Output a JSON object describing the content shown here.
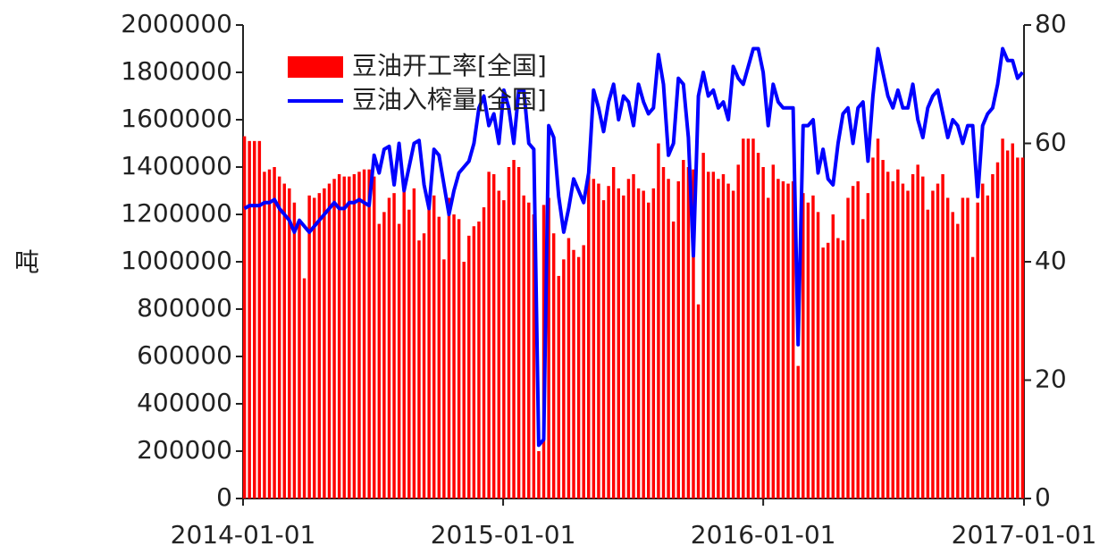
{
  "chart_data": {
    "type": "bar",
    "ylabel": "吨",
    "xlim": [
      "2014-01-01",
      "2017-01-01"
    ],
    "xticks": [
      "2014-01-01",
      "2015-01-01",
      "2016-01-01",
      "2017-01-01"
    ],
    "ylim": [
      0,
      2000000
    ],
    "yticks": [
      0,
      200000,
      400000,
      600000,
      800000,
      1000000,
      1200000,
      1400000,
      1600000,
      1800000,
      2000000
    ],
    "y2lim": [
      0,
      80
    ],
    "y2ticks": [
      0,
      20,
      40,
      60,
      80
    ],
    "grid": false,
    "legend": "top-left",
    "x": [
      "2014-01-03",
      "2014-01-10",
      "2014-01-17",
      "2014-01-24",
      "2014-01-31",
      "2014-02-07",
      "2014-02-14",
      "2014-02-21",
      "2014-02-28",
      "2014-03-07",
      "2014-03-14",
      "2014-03-21",
      "2014-03-28",
      "2014-04-04",
      "2014-04-11",
      "2014-04-18",
      "2014-04-25",
      "2014-05-02",
      "2014-05-09",
      "2014-05-16",
      "2014-05-23",
      "2014-05-30",
      "2014-06-06",
      "2014-06-13",
      "2014-06-20",
      "2014-06-27",
      "2014-07-04",
      "2014-07-11",
      "2014-07-18",
      "2014-07-25",
      "2014-08-01",
      "2014-08-08",
      "2014-08-15",
      "2014-08-22",
      "2014-08-29",
      "2014-09-05",
      "2014-09-12",
      "2014-09-19",
      "2014-09-26",
      "2014-10-03",
      "2014-10-10",
      "2014-10-17",
      "2014-10-24",
      "2014-10-31",
      "2014-11-07",
      "2014-11-14",
      "2014-11-21",
      "2014-11-28",
      "2014-12-05",
      "2014-12-12",
      "2014-12-19",
      "2014-12-26",
      "2015-01-02",
      "2015-01-09",
      "2015-01-16",
      "2015-01-23",
      "2015-01-30",
      "2015-02-06",
      "2015-02-13",
      "2015-02-20",
      "2015-02-27",
      "2015-03-06",
      "2015-03-13",
      "2015-03-20",
      "2015-03-27",
      "2015-04-03",
      "2015-04-10",
      "2015-04-17",
      "2015-04-24",
      "2015-05-01",
      "2015-05-08",
      "2015-05-15",
      "2015-05-22",
      "2015-05-29",
      "2015-06-05",
      "2015-06-12",
      "2015-06-19",
      "2015-06-26",
      "2015-07-03",
      "2015-07-10",
      "2015-07-17",
      "2015-07-24",
      "2015-07-31",
      "2015-08-07",
      "2015-08-14",
      "2015-08-21",
      "2015-08-28",
      "2015-09-04",
      "2015-09-11",
      "2015-09-18",
      "2015-09-25",
      "2015-10-02",
      "2015-10-09",
      "2015-10-16",
      "2015-10-23",
      "2015-10-30",
      "2015-11-06",
      "2015-11-13",
      "2015-11-20",
      "2015-11-27",
      "2015-12-04",
      "2015-12-11",
      "2015-12-18",
      "2015-12-25",
      "2016-01-01",
      "2016-01-08",
      "2016-01-15",
      "2016-01-22",
      "2016-01-29",
      "2016-02-05",
      "2016-02-12",
      "2016-02-19",
      "2016-02-26",
      "2016-03-04",
      "2016-03-11",
      "2016-03-18",
      "2016-03-25",
      "2016-04-01",
      "2016-04-08",
      "2016-04-15",
      "2016-04-22",
      "2016-04-29",
      "2016-05-06",
      "2016-05-13",
      "2016-05-20",
      "2016-05-27",
      "2016-06-03",
      "2016-06-10",
      "2016-06-17",
      "2016-06-24",
      "2016-07-01",
      "2016-07-08",
      "2016-07-15",
      "2016-07-22",
      "2016-07-29",
      "2016-08-05",
      "2016-08-12",
      "2016-08-19",
      "2016-08-26",
      "2016-09-02",
      "2016-09-09",
      "2016-09-16",
      "2016-09-23",
      "2016-09-30",
      "2016-10-07",
      "2016-10-14",
      "2016-10-21",
      "2016-10-28",
      "2016-11-04",
      "2016-11-11",
      "2016-11-18",
      "2016-11-25",
      "2016-12-02",
      "2016-12-09",
      "2016-12-16",
      "2016-12-23",
      "2016-12-30"
    ],
    "series": [
      {
        "name": "豆油开工率[全国]",
        "type": "bar",
        "color": "#ff0000",
        "values": [
          1530000,
          1510000,
          1510000,
          1510000,
          1380000,
          1390000,
          1400000,
          1360000,
          1330000,
          1310000,
          1250000,
          1170000,
          930000,
          1280000,
          1270000,
          1290000,
          1310000,
          1330000,
          1350000,
          1370000,
          1360000,
          1360000,
          1370000,
          1380000,
          1390000,
          1390000,
          1360000,
          1160000,
          1210000,
          1270000,
          1290000,
          1160000,
          1300000,
          1220000,
          1310000,
          1090000,
          1120000,
          1260000,
          1280000,
          1190000,
          1010000,
          1270000,
          1200000,
          1180000,
          1000000,
          1110000,
          1150000,
          1170000,
          1230000,
          1380000,
          1370000,
          1300000,
          1260000,
          1400000,
          1430000,
          1400000,
          1280000,
          1250000,
          1200000,
          200000,
          1240000,
          1270000,
          1120000,
          940000,
          1010000,
          1100000,
          1050000,
          1020000,
          1070000,
          1380000,
          1350000,
          1330000,
          1260000,
          1320000,
          1400000,
          1310000,
          1280000,
          1350000,
          1370000,
          1310000,
          1300000,
          1250000,
          1310000,
          1500000,
          1400000,
          1350000,
          1170000,
          1340000,
          1430000,
          1400000,
          1390000,
          820000,
          1460000,
          1380000,
          1380000,
          1350000,
          1370000,
          1330000,
          1300000,
          1410000,
          1520000,
          1520000,
          1520000,
          1460000,
          1400000,
          1270000,
          1410000,
          1350000,
          1340000,
          1330000,
          1340000,
          560000,
          1290000,
          1250000,
          1280000,
          1210000,
          1060000,
          1080000,
          1200000,
          1100000,
          1090000,
          1270000,
          1320000,
          1340000,
          1180000,
          1290000,
          1440000,
          1520000,
          1430000,
          1380000,
          1340000,
          1390000,
          1330000,
          1300000,
          1370000,
          1410000,
          1360000,
          1220000,
          1300000,
          1330000,
          1370000,
          1270000,
          1210000,
          1160000,
          1270000,
          1270000,
          1020000,
          1250000,
          1330000,
          1280000,
          1370000,
          1420000,
          1520000,
          1470000,
          1500000,
          1440000,
          1440000
        ]
      },
      {
        "name": "豆油入榨量[全国]",
        "type": "line",
        "axis": "y2",
        "color": "#0000ff",
        "values": [
          49,
          49.5,
          49.5,
          49.5,
          50,
          50,
          50.5,
          49,
          48,
          47,
          45,
          47,
          46,
          45,
          46,
          47,
          48,
          49,
          50,
          49,
          49,
          50,
          50,
          50.5,
          50,
          49.5,
          58,
          55,
          59,
          59.5,
          53,
          60,
          52,
          56,
          60,
          60.5,
          53,
          49,
          59,
          58,
          53,
          48,
          52,
          55,
          56,
          57,
          60,
          66,
          68,
          63,
          65,
          60,
          69,
          66,
          60,
          69,
          69,
          60,
          59,
          9,
          10,
          63,
          61,
          51,
          45,
          49,
          54,
          52,
          50,
          55,
          69,
          66,
          62,
          67,
          70,
          64,
          68,
          67,
          63,
          70,
          67,
          65,
          66,
          75,
          70,
          58,
          60,
          71,
          70,
          61,
          41,
          68,
          72,
          68,
          69,
          66,
          67,
          64,
          73,
          71,
          70,
          73,
          76,
          76,
          72,
          63,
          70,
          67,
          66,
          66,
          66,
          26,
          63,
          63,
          64,
          55,
          59,
          54,
          53,
          60,
          65,
          66,
          60,
          66,
          67,
          57,
          68,
          76,
          72,
          68,
          66,
          69,
          66,
          66,
          70,
          64,
          61,
          66,
          68,
          69,
          65,
          61,
          64,
          63,
          60,
          63,
          63,
          51,
          63,
          65,
          66,
          70,
          76,
          74,
          74,
          71,
          72
        ]
      }
    ]
  }
}
